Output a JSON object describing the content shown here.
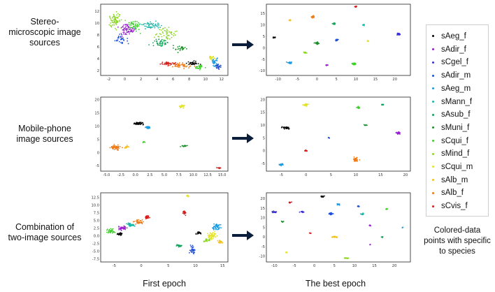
{
  "rows": [
    {
      "label_lines": [
        "Stereo-",
        "microscopic image",
        "sources"
      ]
    },
    {
      "label_lines": [
        "Mobile-phone",
        "image sources"
      ]
    },
    {
      "label_lines": [
        "Combination of",
        "two-image sources"
      ]
    }
  ],
  "columns": {
    "first": "First epoch",
    "best": "The best epoch"
  },
  "legend": {
    "items": [
      {
        "label": "sAeg_f",
        "color": "#000000"
      },
      {
        "label": "sAdir_f",
        "color": "#9b1fd1"
      },
      {
        "label": "sCgel_f",
        "color": "#3a2fd8"
      },
      {
        "label": "sAdir_m",
        "color": "#1f4fd8"
      },
      {
        "label": "sAeg_m",
        "color": "#1a9be0"
      },
      {
        "label": "sMann_f",
        "color": "#19b7a8"
      },
      {
        "label": "sAsub_f",
        "color": "#12a35c"
      },
      {
        "label": "sMuni_f",
        "color": "#1b8f2a"
      },
      {
        "label": "sCqui_f",
        "color": "#3fcf2a"
      },
      {
        "label": "sMind_f",
        "color": "#8fd62b"
      },
      {
        "label": "sCqui_m",
        "color": "#e3e32a"
      },
      {
        "label": "sAlb_m",
        "color": "#f2c21f"
      },
      {
        "label": "sAlb_f",
        "color": "#f07a12"
      },
      {
        "label": "sCvis_f",
        "color": "#d81b1b"
      }
    ],
    "note_lines": [
      "Colored-data",
      "points with specific",
      "to species"
    ]
  },
  "chart_data": [
    {
      "type": "scatter",
      "name": "stereo-first-epoch",
      "xticks": [
        "-2",
        "0",
        "2",
        "4",
        "6",
        "8",
        "10",
        "12"
      ],
      "yticks": [
        "12",
        "10",
        "8",
        "6",
        "4",
        "2"
      ],
      "xlim": [
        -3,
        12.8
      ],
      "ylim": [
        1.2,
        13.2
      ],
      "clusters": [
        {
          "x": -1.2,
          "y": 10.5,
          "sx": 0.9,
          "sy": 1.5,
          "n": 70,
          "c": 9
        },
        {
          "x": 0.3,
          "y": 9.0,
          "sx": 1.0,
          "sy": 1.2,
          "n": 60,
          "c": 1
        },
        {
          "x": 1.2,
          "y": 9.6,
          "sx": 1.0,
          "sy": 1.0,
          "n": 45,
          "c": 8
        },
        {
          "x": 3.2,
          "y": 9.6,
          "sx": 1.2,
          "sy": 0.7,
          "n": 50,
          "c": 5
        },
        {
          "x": 5.2,
          "y": 8.2,
          "sx": 1.4,
          "sy": 1.2,
          "n": 55,
          "c": 9
        },
        {
          "x": 4.5,
          "y": 6.8,
          "sx": 1.2,
          "sy": 1.0,
          "n": 40,
          "c": 6
        },
        {
          "x": -0.5,
          "y": 7.2,
          "sx": 0.7,
          "sy": 0.8,
          "n": 30,
          "c": 3
        },
        {
          "x": 6.8,
          "y": 5.8,
          "sx": 0.8,
          "sy": 0.6,
          "n": 25,
          "c": 7
        },
        {
          "x": 5.5,
          "y": 3.2,
          "sx": 1.2,
          "sy": 0.4,
          "n": 40,
          "c": 13
        },
        {
          "x": 7.0,
          "y": 2.9,
          "sx": 1.4,
          "sy": 0.5,
          "n": 45,
          "c": 12
        },
        {
          "x": 8.5,
          "y": 3.2,
          "sx": 0.8,
          "sy": 0.4,
          "n": 30,
          "c": 0
        },
        {
          "x": 11.2,
          "y": 3.4,
          "sx": 0.5,
          "sy": 0.9,
          "n": 35,
          "c": 4
        },
        {
          "x": 11.6,
          "y": 2.7,
          "sx": 0.4,
          "sy": 0.5,
          "n": 25,
          "c": 3
        },
        {
          "x": 10.8,
          "y": 4.3,
          "sx": 0.5,
          "sy": 0.4,
          "n": 20,
          "c": 10
        },
        {
          "x": 9.3,
          "y": 2.6,
          "sx": 0.6,
          "sy": 0.4,
          "n": 25,
          "c": 8
        }
      ]
    },
    {
      "type": "scatter",
      "name": "stereo-best-epoch",
      "xticks": [
        "-10",
        "-5",
        "0",
        "5",
        "10",
        "15",
        "20"
      ],
      "yticks": [
        "15",
        "10",
        "5",
        "0",
        "-5",
        "-10"
      ],
      "xlim": [
        -13,
        24
      ],
      "ylim": [
        -12,
        19
      ],
      "clusters": [
        {
          "x": -11,
          "y": 4.5,
          "sx": 0.3,
          "sy": 0.3,
          "n": 12,
          "c": 0
        },
        {
          "x": -7,
          "y": -6.5,
          "sx": 0.6,
          "sy": 0.4,
          "n": 30,
          "c": 4
        },
        {
          "x": -1,
          "y": 13.5,
          "sx": 0.5,
          "sy": 0.5,
          "n": 25,
          "c": 12
        },
        {
          "x": 0,
          "y": 2.0,
          "sx": 0.5,
          "sy": 0.5,
          "n": 25,
          "c": 7
        },
        {
          "x": -3,
          "y": -2,
          "sx": 0.4,
          "sy": 0.4,
          "n": 15,
          "c": 9
        },
        {
          "x": 5,
          "y": 3.5,
          "sx": 0.4,
          "sy": 0.4,
          "n": 15,
          "c": 3
        },
        {
          "x": 4.5,
          "y": 10.5,
          "sx": 0.4,
          "sy": 0.4,
          "n": 18,
          "c": 6
        },
        {
          "x": 2.5,
          "y": -7.5,
          "sx": 0.3,
          "sy": 0.3,
          "n": 12,
          "c": 1
        },
        {
          "x": 10,
          "y": 18,
          "sx": 0.4,
          "sy": 0.3,
          "n": 20,
          "c": 13
        },
        {
          "x": 9.5,
          "y": -7,
          "sx": 0.6,
          "sy": 0.5,
          "n": 30,
          "c": 8
        },
        {
          "x": 12,
          "y": 10,
          "sx": 0.3,
          "sy": 0.3,
          "n": 10,
          "c": 5
        },
        {
          "x": 13,
          "y": 3,
          "sx": 0.3,
          "sy": 0.3,
          "n": 10,
          "c": 10
        },
        {
          "x": 21,
          "y": 6,
          "sx": 0.5,
          "sy": 0.5,
          "n": 25,
          "c": 2
        },
        {
          "x": -7,
          "y": 12,
          "sx": 0.3,
          "sy": 0.3,
          "n": 10,
          "c": 11
        }
      ]
    },
    {
      "type": "scatter",
      "name": "mobile-first-epoch",
      "xticks": [
        "-5.0",
        "-2.5",
        "0.0",
        "2.5",
        "5.0",
        "7.5",
        "10.0",
        "12.5",
        "15.0"
      ],
      "yticks": [
        "20",
        "15",
        "10",
        "5",
        "0",
        "-5"
      ],
      "xlim": [
        -6,
        16
      ],
      "ylim": [
        -7,
        21
      ],
      "clusters": [
        {
          "x": 0.5,
          "y": 11,
          "sx": 1.0,
          "sy": 0.5,
          "n": 45,
          "c": 0
        },
        {
          "x": 2.2,
          "y": 9.5,
          "sx": 0.6,
          "sy": 0.5,
          "n": 25,
          "c": 4
        },
        {
          "x": -3.5,
          "y": 2.0,
          "sx": 0.8,
          "sy": 1.0,
          "n": 50,
          "c": 12
        },
        {
          "x": -1.5,
          "y": 2.2,
          "sx": 0.4,
          "sy": 0.6,
          "n": 20,
          "c": 11
        },
        {
          "x": 8,
          "y": 17.5,
          "sx": 0.6,
          "sy": 0.6,
          "n": 30,
          "c": 10
        },
        {
          "x": 8.5,
          "y": 2.5,
          "sx": 0.5,
          "sy": 0.3,
          "n": 20,
          "c": 7
        },
        {
          "x": 14.5,
          "y": -5.8,
          "sx": 0.4,
          "sy": 0.2,
          "n": 15,
          "c": 13
        },
        {
          "x": 1.5,
          "y": 4,
          "sx": 0.3,
          "sy": 0.3,
          "n": 8,
          "c": 8
        }
      ]
    },
    {
      "type": "scatter",
      "name": "mobile-best-epoch",
      "xticks": [
        "-5",
        "0",
        "5",
        "10",
        "15",
        "20"
      ],
      "yticks": [
        "20",
        "15",
        "10",
        "5",
        "0",
        "-5"
      ],
      "xlim": [
        -8,
        21
      ],
      "ylim": [
        -8,
        21
      ],
      "clusters": [
        {
          "x": -4,
          "y": 9,
          "sx": 0.8,
          "sy": 0.5,
          "n": 35,
          "c": 0
        },
        {
          "x": -5,
          "y": -5.5,
          "sx": 0.5,
          "sy": 0.4,
          "n": 25,
          "c": 4
        },
        {
          "x": 0,
          "y": 18,
          "sx": 0.5,
          "sy": 0.5,
          "n": 25,
          "c": 10
        },
        {
          "x": 0,
          "y": 0,
          "sx": 0.3,
          "sy": 0.3,
          "n": 12,
          "c": 13
        },
        {
          "x": 10,
          "y": -3.5,
          "sx": 0.6,
          "sy": 1.0,
          "n": 40,
          "c": 12
        },
        {
          "x": 10.5,
          "y": 17,
          "sx": 0.4,
          "sy": 0.4,
          "n": 18,
          "c": 8
        },
        {
          "x": 12,
          "y": 10,
          "sx": 0.3,
          "sy": 0.3,
          "n": 10,
          "c": 7
        },
        {
          "x": 18.5,
          "y": 7,
          "sx": 0.5,
          "sy": 0.5,
          "n": 25,
          "c": 1
        },
        {
          "x": 15.5,
          "y": 18,
          "sx": 0.3,
          "sy": 0.3,
          "n": 8,
          "c": 6
        },
        {
          "x": 4.5,
          "y": 5,
          "sx": 0.2,
          "sy": 0.2,
          "n": 5,
          "c": 3
        }
      ]
    },
    {
      "type": "scatter",
      "name": "combination-first-epoch",
      "xticks": [
        "-5",
        "0",
        "5",
        "10",
        "15"
      ],
      "yticks": [
        "12.5",
        "10.0",
        "7.5",
        "5.0",
        "2.5",
        "0.0",
        "-2.5",
        "-5.0",
        "-7.5"
      ],
      "xlim": [
        -7.5,
        16
      ],
      "ylim": [
        -8.5,
        14
      ],
      "clusters": [
        {
          "x": -5.5,
          "y": 1.5,
          "sx": 0.7,
          "sy": 0.9,
          "n": 35,
          "c": 8
        },
        {
          "x": -3.5,
          "y": 2.5,
          "sx": 0.9,
          "sy": 0.8,
          "n": 40,
          "c": 1
        },
        {
          "x": -2,
          "y": 3.5,
          "sx": 0.8,
          "sy": 0.7,
          "n": 35,
          "c": 5
        },
        {
          "x": -0.5,
          "y": 4.5,
          "sx": 0.9,
          "sy": 0.8,
          "n": 35,
          "c": 12
        },
        {
          "x": 1,
          "y": 6,
          "sx": 0.6,
          "sy": 0.6,
          "n": 25,
          "c": 13
        },
        {
          "x": -4,
          "y": 0.5,
          "sx": 0.6,
          "sy": 0.4,
          "n": 20,
          "c": 0
        },
        {
          "x": 8,
          "y": 7.5,
          "sx": 0.5,
          "sy": 0.6,
          "n": 25,
          "c": 13
        },
        {
          "x": 8.5,
          "y": 13,
          "sx": 0.3,
          "sy": 0.3,
          "n": 12,
          "c": 10
        },
        {
          "x": 7,
          "y": -3.2,
          "sx": 0.6,
          "sy": 0.4,
          "n": 25,
          "c": 6
        },
        {
          "x": 9.5,
          "y": -4.5,
          "sx": 0.5,
          "sy": 1.4,
          "n": 35,
          "c": 3
        },
        {
          "x": 13,
          "y": 0,
          "sx": 0.8,
          "sy": 1.4,
          "n": 55,
          "c": 10
        },
        {
          "x": 14,
          "y": 3,
          "sx": 0.8,
          "sy": 1.2,
          "n": 45,
          "c": 4
        },
        {
          "x": 12,
          "y": -1.5,
          "sx": 0.7,
          "sy": 0.5,
          "n": 25,
          "c": 9
        },
        {
          "x": 10.5,
          "y": 1,
          "sx": 0.5,
          "sy": 0.5,
          "n": 20,
          "c": 0
        },
        {
          "x": 14.5,
          "y": -2,
          "sx": 0.5,
          "sy": 0.6,
          "n": 25,
          "c": 11
        }
      ]
    },
    {
      "type": "scatter",
      "name": "combination-best-epoch",
      "xticks": [
        "-10",
        "-5",
        "0",
        "5",
        "10",
        "15",
        "20"
      ],
      "yticks": [
        "20",
        "15",
        "10",
        "5",
        "0",
        "-5",
        "-10"
      ],
      "xlim": [
        -12,
        24
      ],
      "ylim": [
        -13,
        23
      ],
      "clusters": [
        {
          "x": 2,
          "y": 21,
          "sx": 0.5,
          "sy": 0.4,
          "n": 20,
          "c": 0
        },
        {
          "x": -6,
          "y": 18,
          "sx": 0.4,
          "sy": 0.4,
          "n": 15,
          "c": 13
        },
        {
          "x": 6,
          "y": 17,
          "sx": 0.4,
          "sy": 0.4,
          "n": 15,
          "c": 4
        },
        {
          "x": 11,
          "y": 16,
          "sx": 0.3,
          "sy": 0.3,
          "n": 10,
          "c": 3
        },
        {
          "x": 18,
          "y": 14.5,
          "sx": 0.3,
          "sy": 0.3,
          "n": 10,
          "c": 8
        },
        {
          "x": -10,
          "y": 13,
          "sx": 0.5,
          "sy": 0.5,
          "n": 20,
          "c": 2
        },
        {
          "x": -3,
          "y": 13,
          "sx": 0.5,
          "sy": 0.4,
          "n": 18,
          "c": 2
        },
        {
          "x": 4,
          "y": 12,
          "sx": 0.6,
          "sy": 0.5,
          "n": 25,
          "c": 3
        },
        {
          "x": 12,
          "y": 12,
          "sx": 0.5,
          "sy": 0.5,
          "n": 22,
          "c": 5
        },
        {
          "x": -8,
          "y": 8,
          "sx": 0.3,
          "sy": 0.3,
          "n": 10,
          "c": 7
        },
        {
          "x": 14,
          "y": 6,
          "sx": 0.3,
          "sy": 0.3,
          "n": 10,
          "c": 1
        },
        {
          "x": -1,
          "y": 2,
          "sx": 0.3,
          "sy": 0.2,
          "n": 8,
          "c": 13
        },
        {
          "x": 5,
          "y": 0,
          "sx": 0.7,
          "sy": 0.4,
          "n": 25,
          "c": 11
        },
        {
          "x": 17,
          "y": 0,
          "sx": 0.3,
          "sy": 0.3,
          "n": 10,
          "c": 6
        },
        {
          "x": -7,
          "y": -8,
          "sx": 0.3,
          "sy": 0.3,
          "n": 8,
          "c": 10
        },
        {
          "x": 8,
          "y": -11,
          "sx": 0.5,
          "sy": 0.3,
          "n": 18,
          "c": 9
        },
        {
          "x": 22,
          "y": 5,
          "sx": 0.2,
          "sy": 0.3,
          "n": 6,
          "c": 4
        },
        {
          "x": 14,
          "y": -4,
          "sx": 0.2,
          "sy": 0.2,
          "n": 5,
          "c": 1
        }
      ]
    }
  ]
}
